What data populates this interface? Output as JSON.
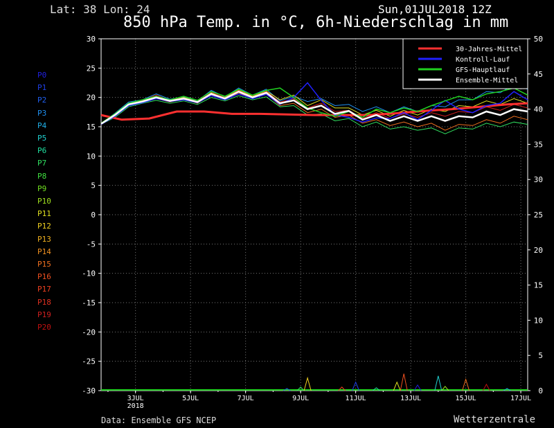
{
  "header": {
    "location": "Lat: 38 Lon: 24",
    "run": "Sun,01JUL2018 12Z",
    "title": "850 hPa Temp. in °C, 6h-Niederschlag in mm"
  },
  "footer": {
    "source": "Data: Ensemble GFS NCEP",
    "brand": "Wetterzentrale"
  },
  "members": [
    {
      "label": "P0",
      "color": "#2020e0"
    },
    {
      "label": "P1",
      "color": "#2040e8"
    },
    {
      "label": "P2",
      "color": "#2060f0"
    },
    {
      "label": "P3",
      "color": "#2090f0"
    },
    {
      "label": "P4",
      "color": "#20b0e8"
    },
    {
      "label": "P5",
      "color": "#20d0d0"
    },
    {
      "label": "P6",
      "color": "#20e0a0"
    },
    {
      "label": "P7",
      "color": "#30e060"
    },
    {
      "label": "P8",
      "color": "#40e040"
    },
    {
      "label": "P9",
      "color": "#70e020"
    },
    {
      "label": "P10",
      "color": "#a0e020"
    },
    {
      "label": "P11",
      "color": "#e0e020"
    },
    {
      "label": "P12",
      "color": "#f0d020"
    },
    {
      "label": "P13",
      "color": "#f0b020"
    },
    {
      "label": "P14",
      "color": "#f09020"
    },
    {
      "label": "P15",
      "color": "#f07020"
    },
    {
      "label": "P16",
      "color": "#f05020"
    },
    {
      "label": "P17",
      "color": "#f04020"
    },
    {
      "label": "P18",
      "color": "#e03020"
    },
    {
      "label": "P19",
      "color": "#d02020"
    },
    {
      "label": "P20",
      "color": "#c01010"
    }
  ],
  "chart_data": {
    "type": "line",
    "title": "850 hPa Temp. in °C, 6h-Niederschlag in mm",
    "xlabel": "",
    "ylabel": "",
    "ylim": [
      -30,
      30
    ],
    "y2lim": [
      0,
      50
    ],
    "yticks": [
      "30",
      "25",
      "20",
      "15",
      "10",
      "5",
      "0",
      "-5",
      "-10",
      "-15",
      "-20",
      "-25",
      "-30"
    ],
    "y2ticks": [
      "50",
      "45",
      "40",
      "35",
      "30",
      "25",
      "20",
      "15",
      "10",
      "5",
      "0"
    ],
    "xticks": [
      {
        "day": 3,
        "label": "3JUL"
      },
      {
        "day": 5,
        "label": "5JUL"
      },
      {
        "day": 7,
        "label": "7JUL"
      },
      {
        "day": 9,
        "label": "9JUL"
      },
      {
        "day": 11,
        "label": "11JUL"
      },
      {
        "day": 13,
        "label": "13JUL"
      },
      {
        "day": 15,
        "label": "15JUL"
      },
      {
        "day": 17,
        "label": "17JUL"
      }
    ],
    "year_label": "2018",
    "xrange_days": [
      1.75,
      17.25
    ],
    "grid": true,
    "legend_position": "top-right",
    "legend": [
      {
        "name": "30-Jahres-Mittel",
        "color": "#ff3030"
      },
      {
        "name": "Kontroll-Lauf",
        "color": "#2020ff"
      },
      {
        "name": "GFS-Hauptlauf",
        "color": "#20d020"
      },
      {
        "name": "Ensemble-Mittel",
        "color": "#ffffff"
      }
    ],
    "mean_30y": {
      "x": [
        1.75,
        2.5,
        3.5,
        4.5,
        5.5,
        6.5,
        7.5,
        8.5,
        9.5,
        10.5,
        11.5,
        12.5,
        13.5,
        14.5,
        15.5,
        16.5,
        17.25
      ],
      "y": [
        17,
        16.2,
        16.4,
        17.6,
        17.6,
        17.2,
        17.2,
        17.1,
        17,
        17,
        17,
        17.3,
        17.7,
        18,
        18.4,
        18.8,
        19
      ]
    },
    "ensemble_mean": {
      "x": [
        1.75,
        2.25,
        2.75,
        3.25,
        3.75,
        4.25,
        4.75,
        5.25,
        5.75,
        6.25,
        6.75,
        7.25,
        7.75,
        8.25,
        8.75,
        9.25,
        9.75,
        10.25,
        10.75,
        11.25,
        11.75,
        12.25,
        12.75,
        13.25,
        13.75,
        14.25,
        14.75,
        15.25,
        15.75,
        16.25,
        16.75,
        17.25
      ],
      "y": [
        15.5,
        17,
        18.8,
        19.3,
        20,
        19.4,
        19.8,
        19.2,
        20.6,
        19.8,
        21,
        20,
        20.8,
        19,
        19.5,
        18,
        18.6,
        17.2,
        17.7,
        16.2,
        17,
        16,
        16.8,
        16,
        16.8,
        16,
        16.8,
        16.6,
        17.6,
        17,
        18,
        17.6
      ]
    },
    "control_run": {
      "x": [
        1.75,
        2.25,
        2.75,
        3.25,
        3.75,
        4.25,
        4.75,
        5.25,
        5.75,
        6.25,
        6.75,
        7.25,
        7.75,
        8.25,
        8.75,
        9.25,
        9.75,
        10.25,
        10.75,
        11.25,
        11.75,
        12.25,
        12.75,
        13.25,
        13.75,
        14.25,
        14.75,
        15.25,
        15.75,
        16.25,
        16.75,
        17.25
      ],
      "y": [
        15.4,
        16.8,
        18.6,
        19.1,
        19.8,
        19.3,
        19.6,
        19.1,
        20.3,
        19.6,
        20.6,
        19.8,
        20.5,
        18.8,
        20,
        22.5,
        19.5,
        17,
        16.6,
        15.8,
        16.5,
        16.4,
        17.4,
        16.2,
        17.8,
        19.5,
        18,
        17.4,
        18.6,
        19,
        21,
        19.6
      ]
    },
    "gfs_main": {
      "x": [
        1.75,
        2.25,
        2.75,
        3.25,
        3.75,
        4.25,
        4.75,
        5.25,
        5.75,
        6.25,
        6.75,
        7.25,
        7.75,
        8.25,
        8.75,
        9.25,
        9.75,
        10.25,
        10.75,
        11.25,
        11.75,
        12.25,
        12.75,
        13.25,
        13.75,
        14.25,
        14.75,
        15.25,
        15.75,
        16.25,
        16.75,
        17.25
      ],
      "y": [
        15.6,
        17.2,
        19,
        19.6,
        20.2,
        19.6,
        20.2,
        19.5,
        21,
        20.2,
        21.4,
        20.4,
        21.2,
        21.6,
        20,
        18.2,
        17.4,
        16.8,
        17.6,
        16.6,
        18,
        17.4,
        18.2,
        17.6,
        18.6,
        19.4,
        20.2,
        19.6,
        20.6,
        21,
        21.6,
        20.4
      ]
    },
    "member_spread": [
      [
        15.5,
        17.3,
        19.2,
        19.6,
        20.6,
        19.7,
        20.1,
        19.4,
        21.2,
        20.1,
        21.6,
        20.4,
        21.4,
        19.4,
        20.2,
        19.3,
        19.8,
        18.6,
        18.8,
        17.6,
        18.4,
        17.4,
        18.4,
        17.6,
        18.6,
        18.4,
        19.6,
        19.6,
        21,
        20.8,
        22.2,
        21.4
      ],
      [
        15.4,
        16.6,
        18.4,
        19.0,
        19.5,
        19.0,
        19.4,
        18.8,
        20.0,
        19.4,
        20.3,
        19.6,
        20.1,
        18.4,
        18.6,
        17.0,
        17.2,
        16.0,
        16.4,
        15.0,
        15.8,
        14.6,
        15.0,
        14.4,
        14.8,
        13.8,
        14.8,
        14.6,
        15.6,
        15.0,
        15.8,
        15.4
      ],
      [
        15.6,
        17.0,
        18.9,
        19.4,
        20.2,
        19.5,
        20.0,
        19.3,
        20.8,
        20.0,
        21.3,
        20.2,
        21.1,
        19.6,
        20.4,
        18.6,
        19.6,
        18.2,
        18.2,
        17.0,
        17.8,
        16.8,
        17.8,
        17.0,
        18.0,
        17.6,
        18.6,
        18.4,
        19.4,
        18.8,
        19.8,
        19.0
      ],
      [
        15.5,
        16.9,
        18.6,
        19.2,
        19.8,
        19.2,
        19.7,
        19.0,
        20.4,
        19.6,
        20.8,
        19.8,
        20.6,
        18.6,
        19.0,
        17.4,
        18.0,
        16.6,
        17.0,
        15.6,
        16.2,
        15.2,
        15.8,
        15.0,
        15.6,
        14.4,
        15.4,
        15.2,
        16.2,
        15.6,
        16.8,
        16.2
      ],
      [
        15.5,
        17.1,
        19.0,
        19.5,
        20.4,
        19.5,
        19.9,
        19.3,
        20.9,
        19.9,
        21.2,
        20.1,
        21.0,
        19.2,
        19.8,
        18.2,
        19.0,
        17.6,
        17.8,
        16.4,
        17.4,
        16.4,
        17.2,
        16.6,
        17.4,
        16.8,
        17.6,
        17.4,
        18.4,
        17.8,
        18.8,
        18.2
      ]
    ],
    "precip_mm": {
      "x": [
        8.5,
        9.0,
        9.25,
        10.5,
        11.0,
        11.75,
        12.5,
        12.75,
        13.25,
        14.0,
        14.25,
        15.0,
        15.75,
        16.5
      ],
      "y": [
        0.3,
        0.5,
        1.8,
        0.5,
        1.2,
        0.4,
        1.2,
        2.4,
        0.8,
        2.1,
        0.6,
        1.6,
        0.9,
        0.3
      ]
    }
  }
}
